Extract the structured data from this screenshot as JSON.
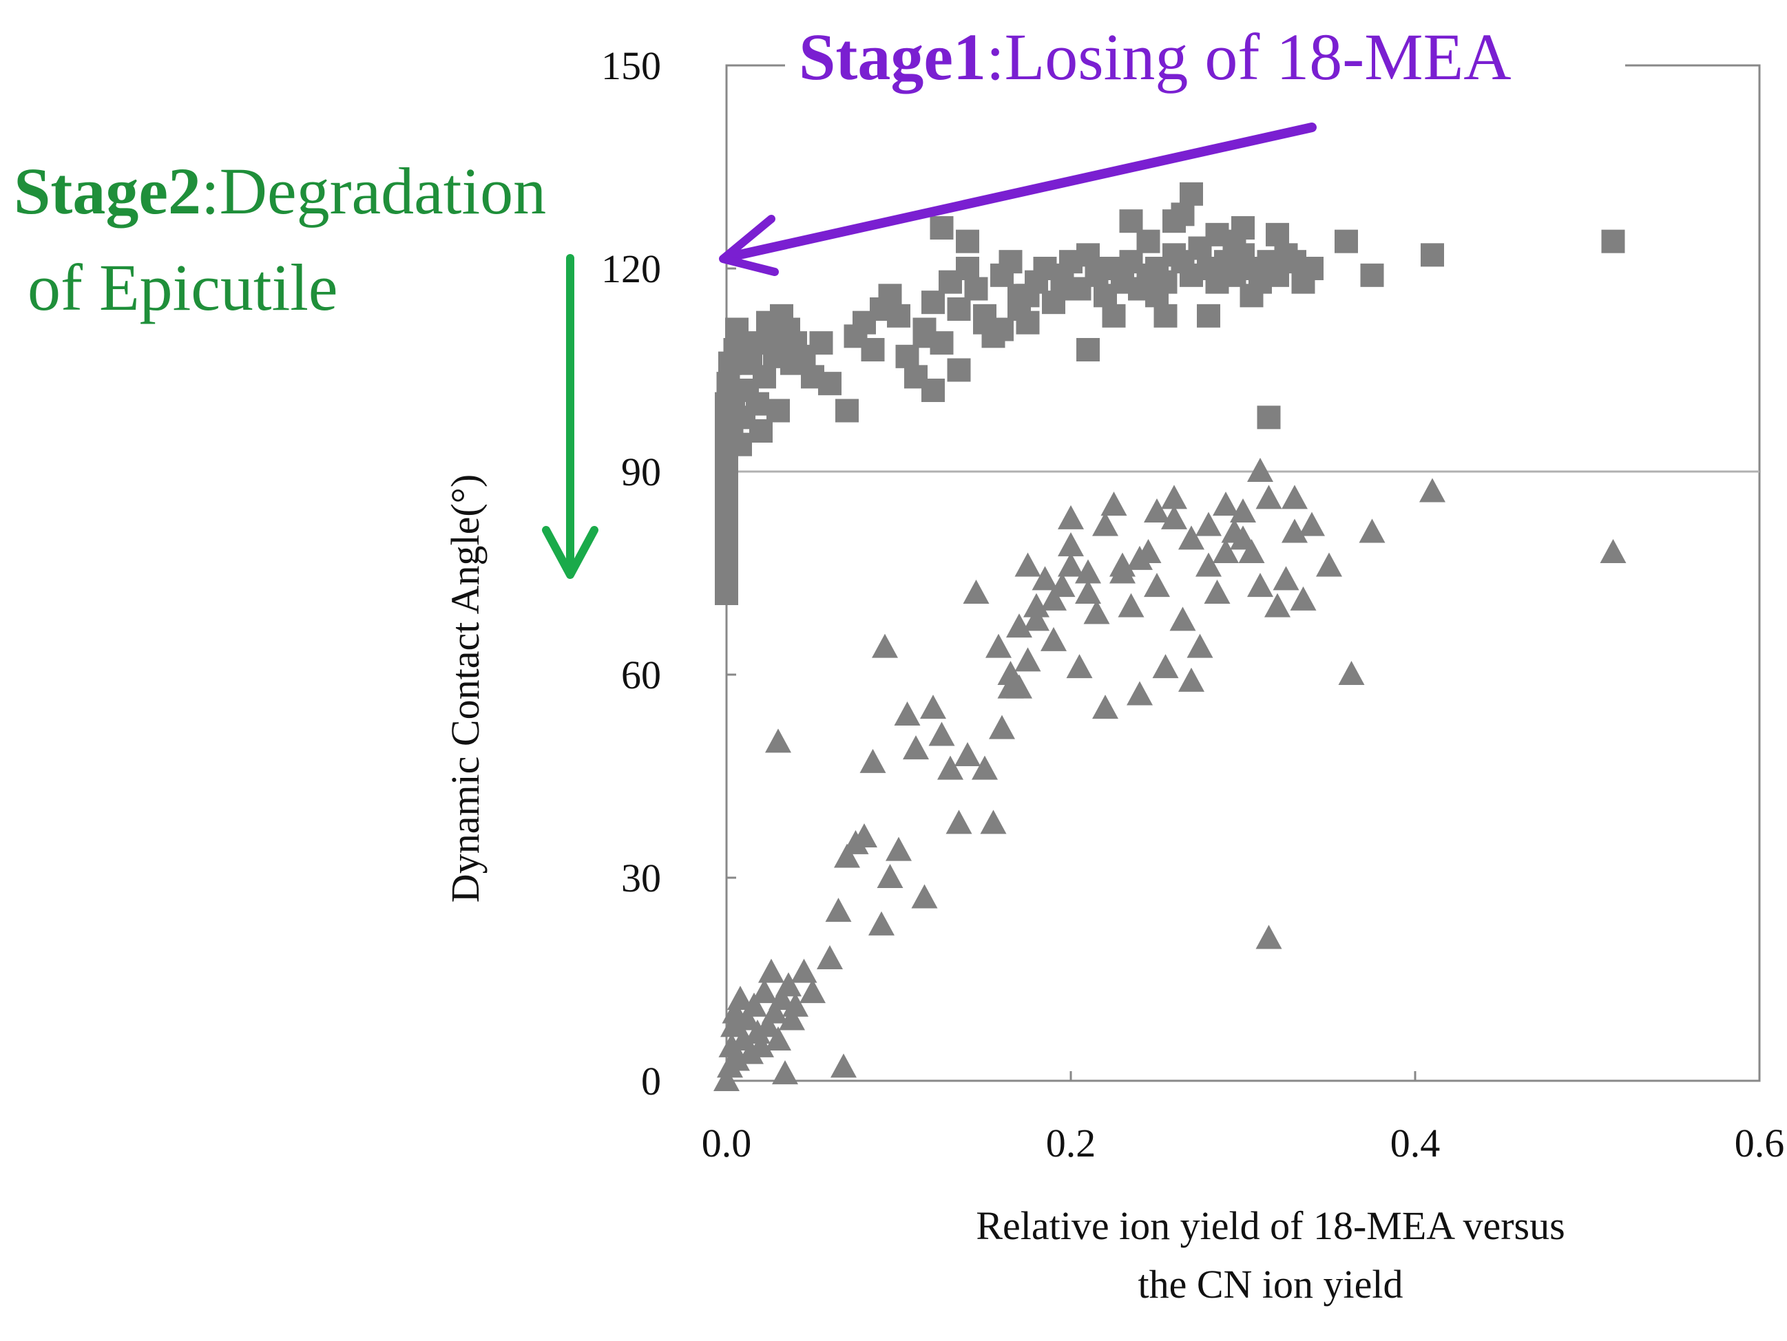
{
  "chart_data": {
    "type": "scatter",
    "title": "",
    "xlabel_lines": [
      "Relative ion yield of 18-MEA versus",
      "the CN ion yield"
    ],
    "ylabel": "Dynamic Contact Angle(°)",
    "xlim": [
      0,
      0.6
    ],
    "ylim": [
      0,
      150
    ],
    "xticks": [
      0.0,
      0.2,
      0.4,
      0.6
    ],
    "xtick_labels": [
      "0.0",
      "0.2",
      "0.4",
      "0.6"
    ],
    "yticks": [
      0,
      30,
      60,
      90,
      120,
      150
    ],
    "ytick_labels": [
      "0",
      "30",
      "60",
      "90",
      "120",
      "150"
    ],
    "reference_line_y": 90,
    "grid": false,
    "colors": {
      "points": "#808080",
      "axis": "#888888",
      "stage1": "#7a1fd1",
      "stage2_text": "#1f8f3a",
      "stage2_arrow": "#1aaa4a"
    },
    "series": [
      {
        "name": "squares",
        "marker": "square",
        "points": [
          [
            0.0,
            72
          ],
          [
            0.0,
            74
          ],
          [
            0.0,
            76
          ],
          [
            0.0,
            78
          ],
          [
            0.0,
            80
          ],
          [
            0.0,
            82
          ],
          [
            0.0,
            84
          ],
          [
            0.0,
            86
          ],
          [
            0.0,
            88
          ],
          [
            0.0,
            90
          ],
          [
            0.0,
            92
          ],
          [
            0.0,
            94
          ],
          [
            0.0,
            96
          ],
          [
            0.0,
            98
          ],
          [
            0.0,
            100
          ],
          [
            0.001,
            103
          ],
          [
            0.002,
            106
          ],
          [
            0.003,
            96
          ],
          [
            0.004,
            99
          ],
          [
            0.005,
            108
          ],
          [
            0.006,
            111
          ],
          [
            0.008,
            94
          ],
          [
            0.01,
            98
          ],
          [
            0.012,
            102
          ],
          [
            0.014,
            106
          ],
          [
            0.016,
            109
          ],
          [
            0.018,
            100
          ],
          [
            0.02,
            96
          ],
          [
            0.022,
            104
          ],
          [
            0.024,
            112
          ],
          [
            0.026,
            110
          ],
          [
            0.028,
            107
          ],
          [
            0.03,
            99
          ],
          [
            0.032,
            113
          ],
          [
            0.034,
            108
          ],
          [
            0.036,
            111
          ],
          [
            0.038,
            106
          ],
          [
            0.04,
            109
          ],
          [
            0.045,
            107
          ],
          [
            0.05,
            104
          ],
          [
            0.055,
            109
          ],
          [
            0.06,
            103
          ],
          [
            0.07,
            99
          ],
          [
            0.075,
            110
          ],
          [
            0.08,
            112
          ],
          [
            0.085,
            108
          ],
          [
            0.09,
            114
          ],
          [
            0.095,
            116
          ],
          [
            0.1,
            113
          ],
          [
            0.105,
            107
          ],
          [
            0.11,
            104
          ],
          [
            0.115,
            111
          ],
          [
            0.12,
            115
          ],
          [
            0.125,
            109
          ],
          [
            0.13,
            118
          ],
          [
            0.135,
            114
          ],
          [
            0.14,
            120
          ],
          [
            0.145,
            117
          ],
          [
            0.15,
            113
          ],
          [
            0.155,
            110
          ],
          [
            0.16,
            119
          ],
          [
            0.165,
            121
          ],
          [
            0.17,
            116
          ],
          [
            0.175,
            112
          ],
          [
            0.18,
            118
          ],
          [
            0.185,
            120
          ],
          [
            0.19,
            115
          ],
          [
            0.195,
            119
          ],
          [
            0.2,
            121
          ],
          [
            0.205,
            117
          ],
          [
            0.21,
            122
          ],
          [
            0.215,
            119
          ],
          [
            0.22,
            116
          ],
          [
            0.225,
            120
          ],
          [
            0.23,
            118
          ],
          [
            0.235,
            121
          ],
          [
            0.24,
            117
          ],
          [
            0.245,
            119
          ],
          [
            0.25,
            120
          ],
          [
            0.255,
            118
          ],
          [
            0.26,
            122
          ],
          [
            0.265,
            121
          ],
          [
            0.27,
            119
          ],
          [
            0.275,
            123
          ],
          [
            0.28,
            120
          ],
          [
            0.285,
            118
          ],
          [
            0.29,
            121
          ],
          [
            0.295,
            119
          ],
          [
            0.3,
            122
          ],
          [
            0.305,
            120
          ],
          [
            0.31,
            118
          ],
          [
            0.315,
            121
          ],
          [
            0.32,
            119
          ],
          [
            0.325,
            122
          ],
          [
            0.33,
            121
          ],
          [
            0.34,
            120
          ],
          [
            0.36,
            124
          ],
          [
            0.375,
            119
          ],
          [
            0.41,
            122
          ],
          [
            0.515,
            124
          ],
          [
            0.315,
            98
          ],
          [
            0.125,
            126
          ],
          [
            0.14,
            124
          ],
          [
            0.26,
            127
          ],
          [
            0.27,
            131
          ],
          [
            0.28,
            113
          ],
          [
            0.3,
            126
          ],
          [
            0.225,
            113
          ],
          [
            0.21,
            108
          ],
          [
            0.17,
            114
          ],
          [
            0.235,
            127
          ],
          [
            0.25,
            116
          ],
          [
            0.255,
            113
          ],
          [
            0.265,
            128
          ],
          [
            0.285,
            125
          ],
          [
            0.295,
            124
          ],
          [
            0.305,
            116
          ],
          [
            0.32,
            125
          ],
          [
            0.335,
            118
          ],
          [
            0.245,
            124
          ],
          [
            0.215,
            120
          ],
          [
            0.195,
            117
          ],
          [
            0.175,
            116
          ],
          [
            0.16,
            111
          ],
          [
            0.15,
            112
          ],
          [
            0.135,
            105
          ],
          [
            0.12,
            102
          ],
          [
            0.115,
            110
          ]
        ]
      },
      {
        "name": "triangles",
        "marker": "triangle",
        "points": [
          [
            0.0,
            0
          ],
          [
            0.002,
            2
          ],
          [
            0.003,
            5
          ],
          [
            0.004,
            8
          ],
          [
            0.005,
            10
          ],
          [
            0.006,
            3
          ],
          [
            0.008,
            12
          ],
          [
            0.01,
            6
          ],
          [
            0.012,
            9
          ],
          [
            0.014,
            4
          ],
          [
            0.016,
            11
          ],
          [
            0.018,
            7
          ],
          [
            0.02,
            5
          ],
          [
            0.022,
            13
          ],
          [
            0.024,
            8
          ],
          [
            0.026,
            16
          ],
          [
            0.028,
            10
          ],
          [
            0.03,
            6
          ],
          [
            0.032,
            12
          ],
          [
            0.034,
            1
          ],
          [
            0.036,
            14
          ],
          [
            0.038,
            9
          ],
          [
            0.04,
            11
          ],
          [
            0.045,
            16
          ],
          [
            0.05,
            13
          ],
          [
            0.03,
            50
          ],
          [
            0.06,
            18
          ],
          [
            0.065,
            25
          ],
          [
            0.068,
            2
          ],
          [
            0.07,
            33
          ],
          [
            0.075,
            35
          ],
          [
            0.08,
            36
          ],
          [
            0.085,
            47
          ],
          [
            0.09,
            23
          ],
          [
            0.092,
            64
          ],
          [
            0.095,
            30
          ],
          [
            0.1,
            34
          ],
          [
            0.105,
            54
          ],
          [
            0.11,
            49
          ],
          [
            0.115,
            27
          ],
          [
            0.12,
            55
          ],
          [
            0.125,
            51
          ],
          [
            0.13,
            46
          ],
          [
            0.135,
            38
          ],
          [
            0.14,
            48
          ],
          [
            0.145,
            72
          ],
          [
            0.15,
            46
          ],
          [
            0.155,
            38
          ],
          [
            0.158,
            64
          ],
          [
            0.16,
            52
          ],
          [
            0.165,
            60
          ],
          [
            0.17,
            67
          ],
          [
            0.175,
            62
          ],
          [
            0.18,
            70
          ],
          [
            0.185,
            74
          ],
          [
            0.19,
            65
          ],
          [
            0.195,
            73
          ],
          [
            0.2,
            79
          ],
          [
            0.205,
            61
          ],
          [
            0.21,
            72
          ],
          [
            0.215,
            69
          ],
          [
            0.22,
            55
          ],
          [
            0.225,
            85
          ],
          [
            0.23,
            75
          ],
          [
            0.235,
            70
          ],
          [
            0.24,
            57
          ],
          [
            0.245,
            78
          ],
          [
            0.25,
            73
          ],
          [
            0.255,
            61
          ],
          [
            0.26,
            83
          ],
          [
            0.265,
            68
          ],
          [
            0.27,
            59
          ],
          [
            0.275,
            64
          ],
          [
            0.28,
            76
          ],
          [
            0.285,
            72
          ],
          [
            0.29,
            85
          ],
          [
            0.295,
            81
          ],
          [
            0.3,
            80
          ],
          [
            0.305,
            78
          ],
          [
            0.31,
            90
          ],
          [
            0.315,
            86
          ],
          [
            0.32,
            70
          ],
          [
            0.325,
            74
          ],
          [
            0.33,
            81
          ],
          [
            0.335,
            71
          ],
          [
            0.34,
            82
          ],
          [
            0.35,
            76
          ],
          [
            0.363,
            60
          ],
          [
            0.375,
            81
          ],
          [
            0.41,
            87
          ],
          [
            0.515,
            78
          ],
          [
            0.315,
            21
          ],
          [
            0.22,
            82
          ],
          [
            0.24,
            77
          ],
          [
            0.26,
            86
          ],
          [
            0.28,
            82
          ],
          [
            0.3,
            84
          ],
          [
            0.2,
            76
          ],
          [
            0.18,
            68
          ],
          [
            0.17,
            58
          ],
          [
            0.19,
            71
          ],
          [
            0.21,
            75
          ],
          [
            0.23,
            76
          ],
          [
            0.25,
            84
          ],
          [
            0.27,
            80
          ],
          [
            0.29,
            78
          ],
          [
            0.31,
            73
          ],
          [
            0.33,
            86
          ],
          [
            0.2,
            83
          ],
          [
            0.175,
            76
          ],
          [
            0.165,
            58
          ]
        ]
      }
    ]
  },
  "annotations": {
    "stage1_bold": "Stage1",
    "stage1_text": ":Losing of 18-MEA",
    "stage2_bold": "Stage2",
    "stage2_text": ":Degradation",
    "stage2_line2": "of  Epicutile"
  }
}
